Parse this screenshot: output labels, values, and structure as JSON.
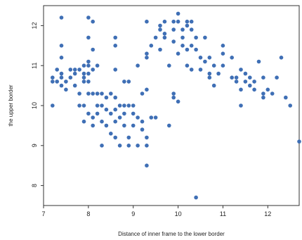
{
  "chart_data": {
    "type": "scatter",
    "xlabel": "Distance of inner frame to the lower border",
    "ylabel": "the upper border",
    "xlim": [
      7,
      12.7
    ],
    "ylim": [
      7.5,
      12.5
    ],
    "xticks": [
      7,
      8,
      9,
      10,
      11,
      12
    ],
    "yticks": [
      8,
      9,
      10,
      11,
      12
    ],
    "grid": false,
    "point_color": "#3f6fb5",
    "points": [
      [
        7.2,
        10.7
      ],
      [
        7.2,
        10.6
      ],
      [
        7.2,
        10.0
      ],
      [
        7.3,
        10.9
      ],
      [
        7.3,
        10.6
      ],
      [
        7.4,
        12.2
      ],
      [
        7.4,
        11.5
      ],
      [
        7.4,
        11.2
      ],
      [
        7.4,
        10.8
      ],
      [
        7.4,
        10.7
      ],
      [
        7.4,
        10.5
      ],
      [
        7.5,
        10.4
      ],
      [
        7.5,
        10.6
      ],
      [
        7.6,
        10.9
      ],
      [
        7.6,
        10.7
      ],
      [
        7.7,
        10.8
      ],
      [
        7.7,
        10.9
      ],
      [
        7.7,
        10.5
      ],
      [
        7.8,
        10.9
      ],
      [
        7.8,
        10.3
      ],
      [
        7.8,
        10.0
      ],
      [
        7.9,
        11.0
      ],
      [
        7.9,
        10.8
      ],
      [
        7.9,
        10.7
      ],
      [
        7.9,
        10.6
      ],
      [
        7.9,
        10.0
      ],
      [
        7.9,
        9.6
      ],
      [
        8.0,
        12.2
      ],
      [
        8.0,
        11.7
      ],
      [
        8.0,
        11.1
      ],
      [
        8.0,
        11.0
      ],
      [
        8.0,
        10.8
      ],
      [
        8.0,
        10.6
      ],
      [
        8.0,
        10.3
      ],
      [
        8.0,
        9.8
      ],
      [
        8.1,
        12.1
      ],
      [
        8.1,
        11.4
      ],
      [
        8.1,
        10.9
      ],
      [
        8.1,
        10.3
      ],
      [
        8.1,
        9.7
      ],
      [
        8.1,
        9.5
      ],
      [
        8.2,
        11.0
      ],
      [
        8.2,
        10.3
      ],
      [
        8.2,
        10.0
      ],
      [
        8.2,
        9.8
      ],
      [
        8.3,
        10.3
      ],
      [
        8.3,
        10.0
      ],
      [
        8.3,
        9.6
      ],
      [
        8.3,
        9.0
      ],
      [
        8.4,
        10.2
      ],
      [
        8.4,
        9.9
      ],
      [
        8.4,
        9.5
      ],
      [
        8.5,
        10.3
      ],
      [
        8.5,
        9.8
      ],
      [
        8.5,
        9.3
      ],
      [
        8.6,
        11.7
      ],
      [
        8.6,
        11.5
      ],
      [
        8.6,
        10.9
      ],
      [
        8.6,
        10.2
      ],
      [
        8.6,
        9.9
      ],
      [
        8.6,
        9.6
      ],
      [
        8.6,
        9.2
      ],
      [
        8.7,
        10.0
      ],
      [
        8.7,
        9.7
      ],
      [
        8.7,
        9.0
      ],
      [
        8.8,
        10.6
      ],
      [
        8.8,
        10.0
      ],
      [
        8.8,
        9.8
      ],
      [
        8.8,
        9.5
      ],
      [
        8.9,
        10.6
      ],
      [
        8.9,
        10.0
      ],
      [
        8.9,
        9.2
      ],
      [
        8.9,
        9.0
      ],
      [
        9.0,
        10.0
      ],
      [
        9.0,
        9.8
      ],
      [
        9.0,
        9.5
      ],
      [
        9.1,
        11.0
      ],
      [
        9.1,
        9.7
      ],
      [
        9.1,
        9.0
      ],
      [
        9.2,
        10.3
      ],
      [
        9.2,
        9.6
      ],
      [
        9.2,
        9.4
      ],
      [
        9.3,
        12.1
      ],
      [
        9.3,
        11.3
      ],
      [
        9.3,
        11.2
      ],
      [
        9.3,
        10.4
      ],
      [
        9.3,
        9.2
      ],
      [
        9.3,
        9.0
      ],
      [
        9.3,
        8.5
      ],
      [
        9.4,
        9.7
      ],
      [
        9.4,
        11.5
      ],
      [
        9.5,
        11.7
      ],
      [
        9.5,
        9.7
      ],
      [
        9.6,
        12.0
      ],
      [
        9.6,
        11.9
      ],
      [
        9.6,
        11.4
      ],
      [
        9.7,
        11.7
      ],
      [
        9.7,
        12.1
      ],
      [
        9.7,
        11.8
      ],
      [
        9.8,
        9.5
      ],
      [
        9.8,
        11.0
      ],
      [
        9.9,
        12.1
      ],
      [
        9.9,
        11.9
      ],
      [
        9.9,
        11.6
      ],
      [
        9.9,
        10.3
      ],
      [
        9.9,
        10.2
      ],
      [
        10.0,
        12.3
      ],
      [
        10.0,
        12.1
      ],
      [
        10.0,
        11.3
      ],
      [
        10.0,
        10.1
      ],
      [
        10.1,
        11.9
      ],
      [
        10.1,
        11.7
      ],
      [
        10.1,
        11.5
      ],
      [
        10.2,
        12.1
      ],
      [
        10.2,
        12.0
      ],
      [
        10.2,
        11.4
      ],
      [
        10.2,
        11.0
      ],
      [
        10.3,
        12.1
      ],
      [
        10.3,
        11.9
      ],
      [
        10.3,
        11.5
      ],
      [
        10.3,
        10.9
      ],
      [
        10.4,
        11.7
      ],
      [
        10.4,
        11.4
      ],
      [
        10.4,
        7.7
      ],
      [
        10.5,
        11.2
      ],
      [
        10.5,
        10.9
      ],
      [
        10.6,
        11.7
      ],
      [
        10.6,
        11.1
      ],
      [
        10.7,
        10.8
      ],
      [
        10.7,
        10.7
      ],
      [
        10.7,
        11.2
      ],
      [
        10.8,
        11.0
      ],
      [
        10.8,
        10.5
      ],
      [
        10.9,
        10.8
      ],
      [
        11.0,
        11.5
      ],
      [
        11.0,
        11.3
      ],
      [
        11.0,
        11.0
      ],
      [
        11.2,
        10.7
      ],
      [
        11.2,
        11.2
      ],
      [
        11.3,
        10.7
      ],
      [
        11.3,
        10.6
      ],
      [
        11.4,
        10.9
      ],
      [
        11.4,
        10.4
      ],
      [
        11.4,
        10.0
      ],
      [
        11.5,
        10.8
      ],
      [
        11.5,
        10.6
      ],
      [
        11.6,
        10.7
      ],
      [
        11.6,
        10.5
      ],
      [
        11.7,
        10.6
      ],
      [
        11.7,
        10.4
      ],
      [
        11.8,
        11.1
      ],
      [
        11.9,
        10.7
      ],
      [
        11.9,
        10.3
      ],
      [
        11.9,
        10.2
      ],
      [
        12.0,
        10.4
      ],
      [
        12.1,
        10.3
      ],
      [
        12.2,
        10.7
      ],
      [
        12.3,
        11.2
      ],
      [
        12.4,
        10.2
      ],
      [
        12.5,
        10.0
      ],
      [
        12.7,
        9.1
      ]
    ]
  }
}
